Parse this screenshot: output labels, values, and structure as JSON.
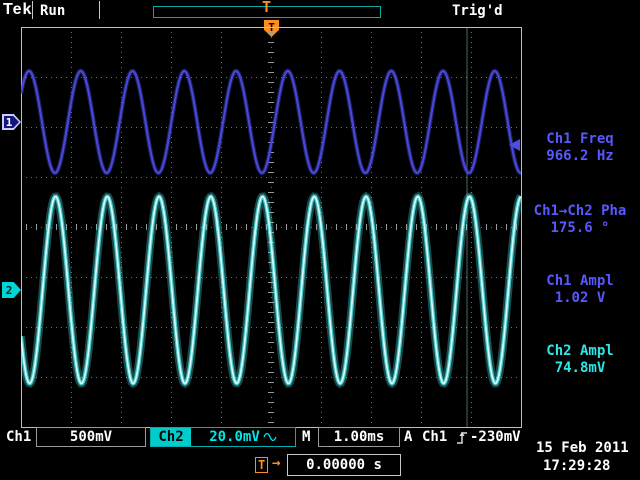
{
  "header": {
    "logo": "Tek",
    "acq_state": "Run",
    "trig_status": "Trig'd",
    "trig_marker": "T"
  },
  "measurements": [
    {
      "label": "Ch1 Freq",
      "value": "966.2 Hz",
      "color": "#5858ff"
    },
    {
      "label": "Ch1→Ch2 Pha",
      "value": "175.6 °",
      "color": "#5858ff"
    },
    {
      "label": "Ch1 Ampl",
      "value": "1.02 V",
      "color": "#5858ff"
    },
    {
      "label": "Ch2 Ampl",
      "value": "74.8mV",
      "color": "#2ee6e6"
    }
  ],
  "channel_markers": {
    "ch1": "1",
    "ch2": "2"
  },
  "status_bar": {
    "ch1_label": "Ch1",
    "ch1_scale": "500mV",
    "ch2_label": "Ch2",
    "ch2_scale": "20.0mV",
    "ch2_coupling_icon": "sine-wave-icon",
    "timebase_label": "M",
    "timebase": "1.00ms",
    "trigger_line_label": "A",
    "trigger_source": "Ch1",
    "trigger_slope_icon": "rising-edge-icon",
    "trigger_level": "-230mV"
  },
  "footer": {
    "trig_indicator": "T",
    "trig_arrow_icon": "→",
    "trig_time": "0.00000 s",
    "date": "15 Feb 2011",
    "time": "17:29:28"
  },
  "chart_data": {
    "type": "line",
    "title": "Oscilloscope waveform display",
    "x_axis": {
      "time_per_div": "1.00ms",
      "divisions": 10,
      "total_time_ms": 10
    },
    "y_axis": {
      "divisions": 8
    },
    "cycles_on_screen": 9.662,
    "series": [
      {
        "name": "Ch1",
        "waveform": "sine",
        "frequency_hz": 966.2,
        "amplitude": "1.02 V",
        "scale_per_div": "500mV",
        "amp_div": 1.02,
        "offset_div": 2.1,
        "phase_at_center_deg": -26.8,
        "color": "#4747d8"
      },
      {
        "name": "Ch2",
        "waveform": "sine",
        "frequency_hz": 966.2,
        "amplitude": "74.8mV",
        "scale_per_div": "20.0mV",
        "amp_div": 1.87,
        "offset_div": -1.26,
        "phase_at_center_deg": 148.8,
        "color": "#55eeee"
      }
    ],
    "phase_ch1_to_ch2_deg": 175.6,
    "trigger": {
      "source": "Ch1",
      "slope": "rising",
      "level": "-230mV",
      "level_div_below_ch1_zero": 0.46
    },
    "grid": {
      "color": "#707070",
      "style": "dotted",
      "legend": "off"
    }
  }
}
